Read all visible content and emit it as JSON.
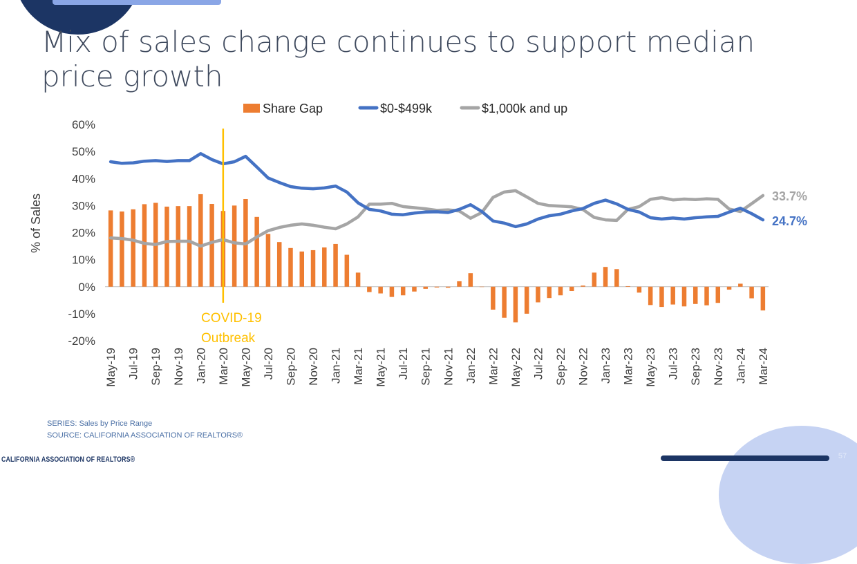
{
  "slide": {
    "title": "Mix of sales change continues to support median price growth",
    "series_note": "SERIES: Sales by Price Range",
    "source_note": "SOURCE: CALIFORNIA ASSOCIATION OF REALTORS®",
    "brand": "CALIFORNIA ASSOCIATION OF REALTORS®",
    "page_number": "57"
  },
  "colors": {
    "share_gap": "#ed7d31",
    "low_price": "#4472c4",
    "high_price": "#a5a5a5",
    "covid_line": "#ffc000",
    "title": "#3f4a5e"
  },
  "chart_data": {
    "type": "bar+line",
    "ylabel": "% of Sales",
    "ylim": [
      -20,
      60
    ],
    "yticks": [
      -20,
      -10,
      0,
      10,
      20,
      30,
      40,
      50,
      60
    ],
    "ytick_labels": [
      "-20%",
      "-10%",
      "0%",
      "10%",
      "20%",
      "30%",
      "40%",
      "50%",
      "60%"
    ],
    "x": [
      "May-19",
      "Jun-19",
      "Jul-19",
      "Aug-19",
      "Sep-19",
      "Oct-19",
      "Nov-19",
      "Dec-19",
      "Jan-20",
      "Feb-20",
      "Mar-20",
      "Apr-20",
      "May-20",
      "Jun-20",
      "Jul-20",
      "Aug-20",
      "Sep-20",
      "Oct-20",
      "Nov-20",
      "Dec-20",
      "Jan-21",
      "Feb-21",
      "Mar-21",
      "Apr-21",
      "May-21",
      "Jun-21",
      "Jul-21",
      "Aug-21",
      "Sep-21",
      "Oct-21",
      "Nov-21",
      "Dec-21",
      "Jan-22",
      "Feb-22",
      "Mar-22",
      "Apr-22",
      "May-22",
      "Jun-22",
      "Jul-22",
      "Aug-22",
      "Sep-22",
      "Oct-22",
      "Nov-22",
      "Dec-22",
      "Jan-23",
      "Feb-23",
      "Mar-23",
      "Apr-23",
      "May-23",
      "Jun-23",
      "Jul-23",
      "Aug-23",
      "Sep-23",
      "Oct-23",
      "Nov-23",
      "Dec-23",
      "Jan-24",
      "Feb-24",
      "Mar-24"
    ],
    "x_tick_labels": [
      "May-19",
      "Jul-19",
      "Sep-19",
      "Nov-19",
      "Jan-20",
      "Mar-20",
      "May-20",
      "Jul-20",
      "Sep-20",
      "Nov-20",
      "Jan-21",
      "Mar-21",
      "May-21",
      "Jul-21",
      "Sep-21",
      "Nov-21",
      "Jan-22",
      "Mar-22",
      "May-22",
      "Jul-22",
      "Sep-22",
      "Nov-22",
      "Jan-23",
      "Mar-23",
      "May-23",
      "Jul-23",
      "Sep-23",
      "Nov-23",
      "Jan-24",
      "Mar-24"
    ],
    "series": [
      {
        "name": "Share Gap",
        "kind": "bar",
        "values": [
          28.2,
          27.8,
          28.6,
          30.5,
          31.0,
          29.6,
          29.8,
          29.8,
          34.2,
          30.6,
          28.0,
          30.0,
          32.4,
          25.8,
          19.5,
          16.5,
          14.3,
          13.0,
          13.5,
          14.5,
          15.8,
          11.8,
          5.2,
          -2.0,
          -2.5,
          -3.8,
          -3.2,
          -1.8,
          -0.8,
          -0.3,
          -0.4,
          2.0,
          5.0,
          0.0,
          -8.5,
          -11.5,
          -13.2,
          -10.0,
          -5.8,
          -4.2,
          -3.2,
          -1.6,
          0.4,
          5.2,
          7.3,
          6.5,
          0.2,
          -2.2,
          -6.8,
          -7.5,
          -6.6,
          -7.3,
          -6.4,
          -6.9,
          -6.0,
          -1.1,
          1.1,
          -4.3,
          -8.8
        ]
      },
      {
        "name": "$0-$499k",
        "kind": "line",
        "values": [
          46.2,
          45.6,
          45.8,
          46.4,
          46.6,
          46.3,
          46.6,
          46.6,
          49.2,
          47.0,
          45.4,
          46.2,
          48.2,
          44.2,
          40.2,
          38.5,
          37.0,
          36.4,
          36.2,
          36.5,
          37.2,
          35.0,
          31.0,
          28.6,
          28.0,
          26.8,
          26.6,
          27.2,
          27.6,
          27.7,
          27.4,
          28.6,
          30.3,
          27.8,
          24.3,
          23.5,
          22.2,
          23.2,
          25.0,
          26.2,
          26.8,
          28.0,
          28.9,
          30.8,
          32.0,
          30.6,
          28.6,
          27.6,
          25.5,
          25.0,
          25.4,
          25.0,
          25.5,
          25.8,
          26.0,
          27.6,
          29.0,
          27.0,
          24.7
        ]
      },
      {
        "name": "$1,000k and up",
        "kind": "line",
        "values": [
          18.0,
          17.8,
          17.2,
          16.0,
          15.6,
          16.7,
          16.8,
          16.8,
          15.0,
          16.4,
          17.4,
          16.2,
          15.8,
          18.4,
          20.7,
          21.9,
          22.7,
          23.2,
          22.7,
          22.0,
          21.4,
          23.2,
          25.8,
          30.5,
          30.5,
          30.8,
          29.6,
          29.2,
          28.8,
          28.2,
          28.4,
          28.0,
          25.3,
          27.4,
          33.0,
          35.0,
          35.5,
          33.2,
          30.8,
          30.0,
          29.8,
          29.5,
          28.5,
          25.6,
          24.7,
          24.5,
          28.6,
          29.6,
          32.3,
          32.9,
          32.1,
          32.4,
          32.2,
          32.5,
          32.3,
          28.7,
          27.8,
          30.7,
          33.7
        ]
      }
    ],
    "end_labels": {
      "low_price": "24.7%",
      "high_price": "33.7%"
    },
    "annotation": {
      "line1": "COVID-19",
      "line2": "Outbreak",
      "at_x": "Mar-20"
    },
    "legend_position": "top"
  }
}
